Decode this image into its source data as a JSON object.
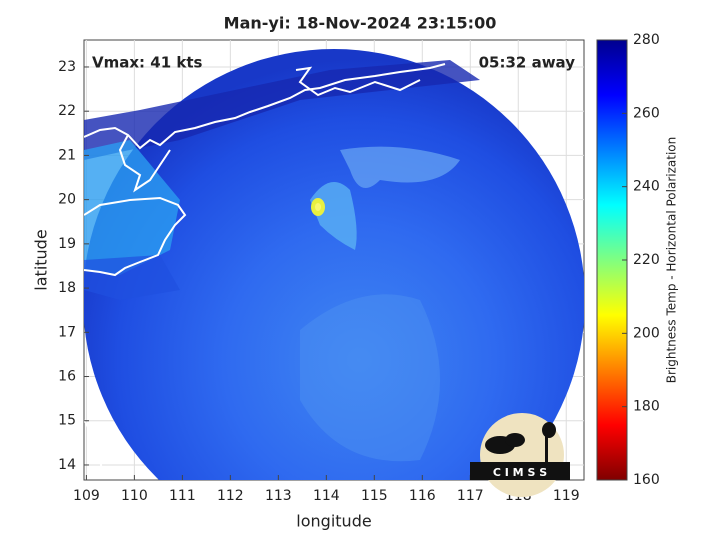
{
  "map_data": {
    "title": "Man-yi: 18-Nov-2024 23:15:00",
    "annotations": {
      "vmax": "Vmax: 41 kts",
      "away": "05:32 away"
    },
    "xlabel": "longitude",
    "ylabel": "latitude",
    "xlim": [
      108.95,
      119.37
    ],
    "ylim": [
      13.66,
      23.61
    ],
    "xticks": [
      109,
      110,
      111,
      112,
      113,
      114,
      115,
      116,
      117,
      118,
      119
    ],
    "yticks": [
      14,
      15,
      16,
      17,
      18,
      19,
      20,
      21,
      22,
      23
    ],
    "grid": true,
    "colorbar": {
      "label": "Brightness Temp - Horizontal Polarization",
      "lim": [
        160,
        280
      ],
      "ticks": [
        160,
        180,
        200,
        220,
        240,
        260,
        280
      ]
    },
    "logo": "C I M S S"
  }
}
